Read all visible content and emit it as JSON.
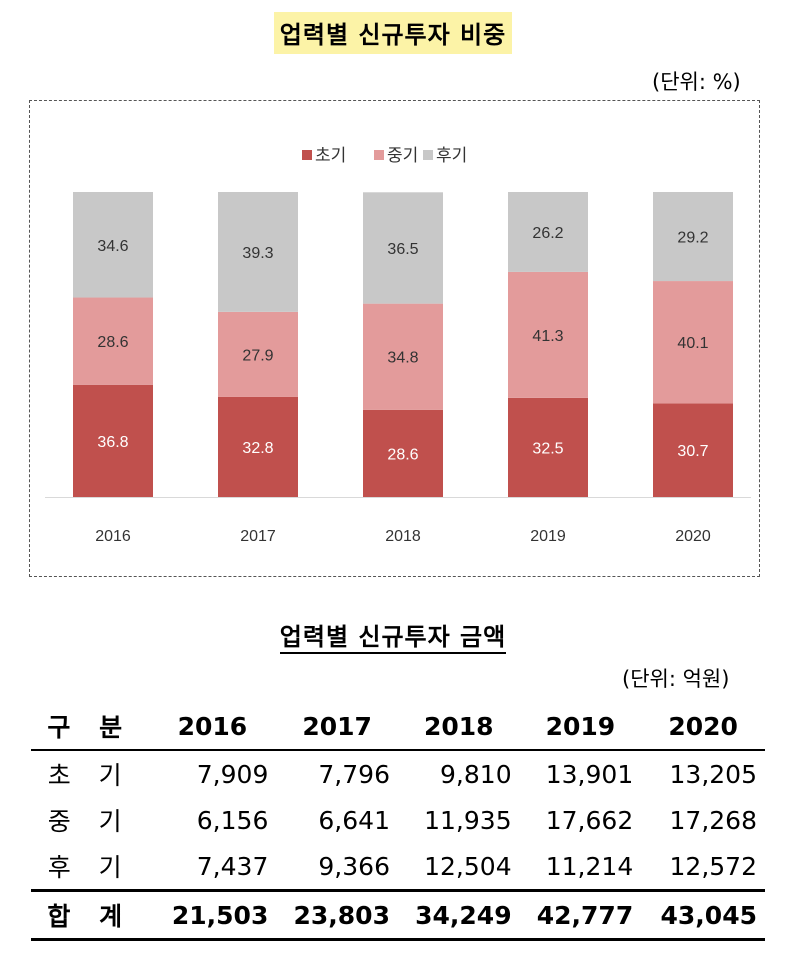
{
  "title": "업력별 신규투자 비중",
  "unit1": "(단위: %)",
  "chart_data": {
    "type": "bar",
    "stacked": true,
    "categories": [
      "2016",
      "2017",
      "2018",
      "2019",
      "2020"
    ],
    "series": [
      {
        "name": "초기",
        "color": "#c0504d",
        "values": [
          36.8,
          32.8,
          28.6,
          32.5,
          30.7
        ]
      },
      {
        "name": "중기",
        "color": "#e39b9b",
        "values": [
          28.6,
          27.9,
          34.8,
          41.3,
          40.1
        ]
      },
      {
        "name": "후기",
        "color": "#c8c8c8",
        "values": [
          34.6,
          39.3,
          36.5,
          26.2,
          29.2
        ]
      }
    ],
    "ylim": [
      0,
      100
    ],
    "legend": "top-center"
  },
  "title2": "업력별 신규투자 금액",
  "unit2": "(단위: 억원)",
  "table": {
    "headers": [
      "구 분",
      "2016",
      "2017",
      "2018",
      "2019",
      "2020"
    ],
    "rows": [
      {
        "label": "초 기",
        "values": [
          "7,909",
          "7,796",
          "9,810",
          "13,901",
          "13,205"
        ]
      },
      {
        "label": "중 기",
        "values": [
          "6,156",
          "6,641",
          "11,935",
          "17,662",
          "17,268"
        ]
      },
      {
        "label": "후 기",
        "values": [
          "7,437",
          "9,366",
          "12,504",
          "11,214",
          "12,572"
        ]
      }
    ],
    "total": {
      "label": "합 계",
      "values": [
        "21,503",
        "23,803",
        "34,249",
        "42,777",
        "43,045"
      ]
    }
  }
}
